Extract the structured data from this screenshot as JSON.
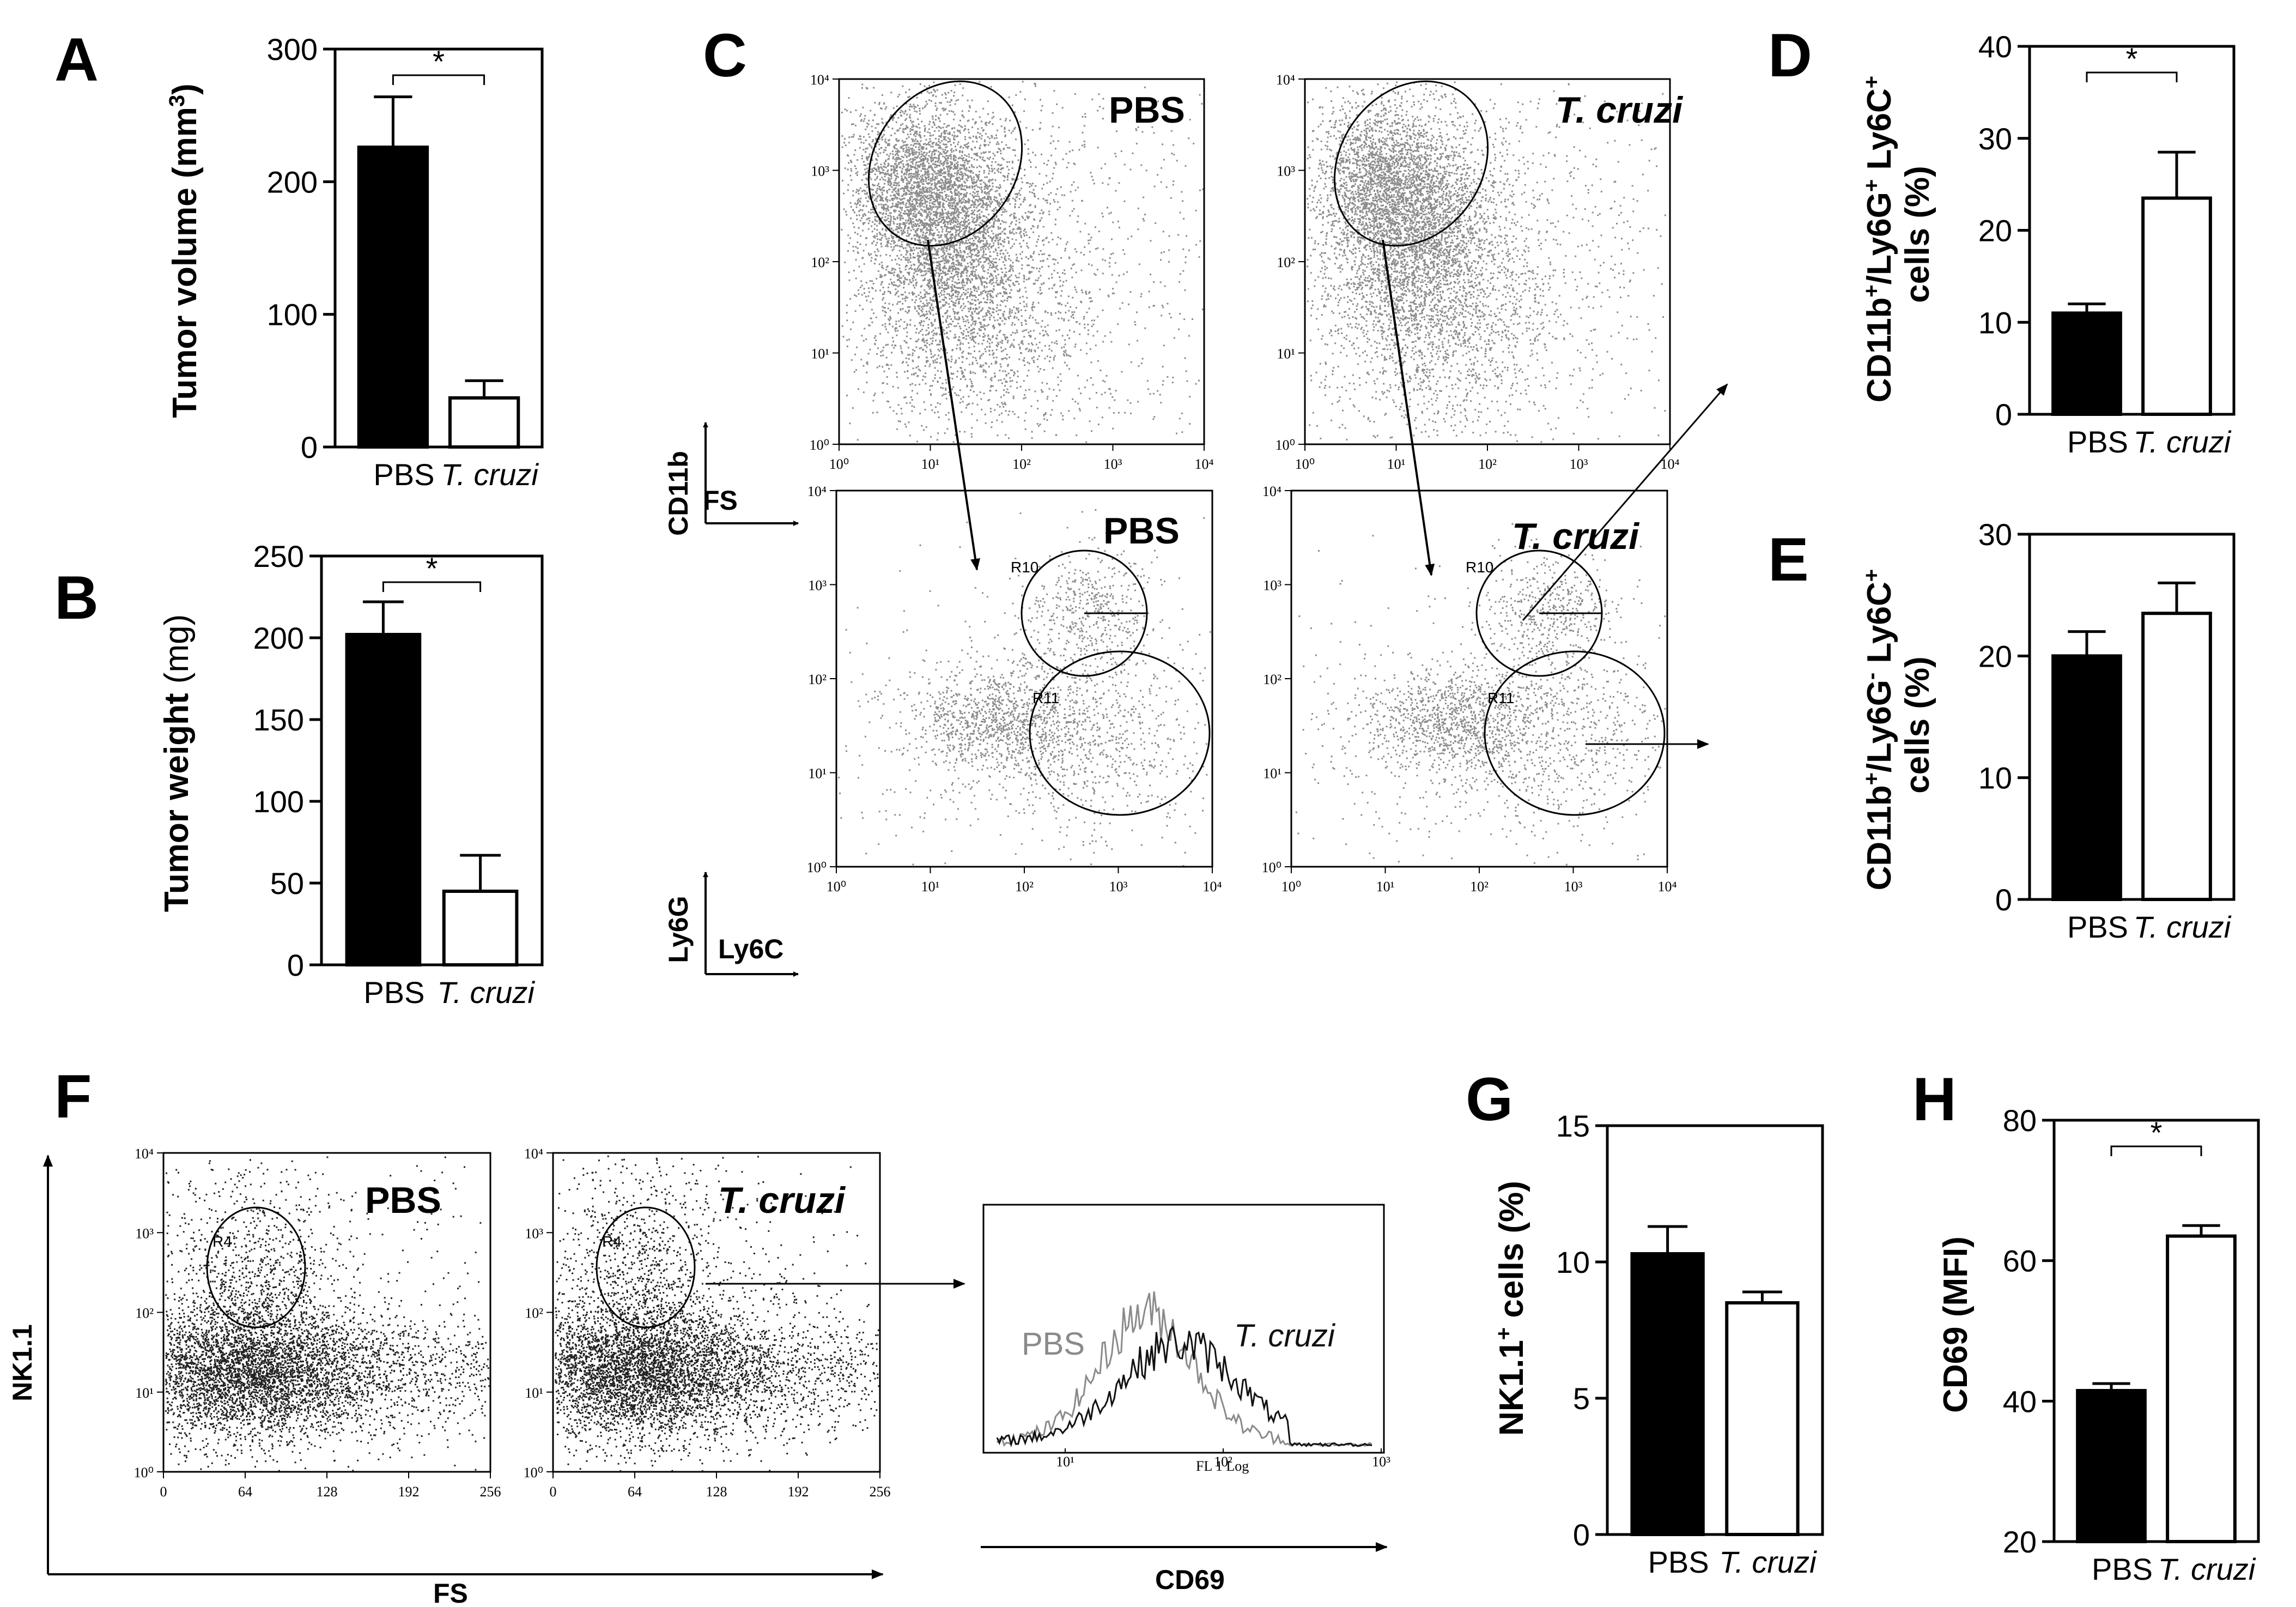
{
  "colors": {
    "black": "#000000",
    "dot": "#7a7a7a",
    "dark_dot": "#222222",
    "hist_pbs": "#8a8a8a",
    "hist_tc": "#111111"
  },
  "chart_data": [
    {
      "id": "A",
      "type": "bar",
      "letter": "A",
      "title": "",
      "ylabel": "Tumor volume (mm3)",
      "ylabel_parts": [
        "Tumor volume (mm",
        "3",
        ")"
      ],
      "categories": [
        "PBS",
        "T. cruzi"
      ],
      "values": [
        226,
        37
      ],
      "errors": [
        38,
        13
      ],
      "ylim": [
        0,
        300
      ],
      "yticks": [
        "0",
        "100",
        "200",
        "300"
      ],
      "significance": "*"
    },
    {
      "id": "B",
      "type": "bar",
      "letter": "B",
      "title": "",
      "ylabel": "Tumor weight (mg)",
      "ylabel_parts": [
        "Tumor weight",
        "(mg)"
      ],
      "categories": [
        "PBS",
        "T. cruzi"
      ],
      "values": [
        202,
        45
      ],
      "errors": [
        20,
        22
      ],
      "ylim": [
        0,
        250
      ],
      "yticks": [
        "0",
        "50",
        "100",
        "150",
        "200",
        "250"
      ],
      "significance": "*"
    },
    {
      "id": "D",
      "type": "bar",
      "letter": "D",
      "title": "",
      "ylabel": "CD11b+/Ly6G+ Ly6C+ cells (%)",
      "categories": [
        "PBS",
        "T. cruzi"
      ],
      "values": [
        11,
        23.5
      ],
      "errors": [
        1,
        5
      ],
      "ylim": [
        0,
        40
      ],
      "yticks": [
        "0",
        "10",
        "20",
        "30",
        "40"
      ],
      "significance": "*"
    },
    {
      "id": "E",
      "type": "bar",
      "letter": "E",
      "title": "",
      "ylabel": "CD11b+/Ly6G- Ly6C+ cells (%)",
      "categories": [
        "PBS",
        "T. cruzi"
      ],
      "values": [
        20,
        23.5
      ],
      "errors": [
        2,
        2.5
      ],
      "ylim": [
        0,
        30
      ],
      "yticks": [
        "0",
        "10",
        "20",
        "30"
      ],
      "significance": ""
    },
    {
      "id": "G",
      "type": "bar",
      "letter": "G",
      "title": "",
      "ylabel": "NK1.1+ cells (%)",
      "categories": [
        "PBS",
        "T. cruzi"
      ],
      "values": [
        10.3,
        8.5
      ],
      "errors": [
        1,
        0.4
      ],
      "ylim": [
        0,
        15
      ],
      "yticks": [
        "0",
        "5",
        "10",
        "15"
      ],
      "significance": ""
    },
    {
      "id": "H",
      "type": "bar",
      "letter": "H",
      "title": "",
      "ylabel": "CD69 (MFI)",
      "categories": [
        "PBS",
        "T. cruzi"
      ],
      "values": [
        41.5,
        63.5
      ],
      "errors": [
        1,
        1.5
      ],
      "ylim": [
        20,
        80
      ],
      "yticks": [
        "20",
        "40",
        "60",
        "80"
      ],
      "significance": "*"
    },
    {
      "id": "C",
      "type": "scatter",
      "letter": "C",
      "description_labels": true,
      "plots": [
        {
          "title": "PBS",
          "xticks": [
            "10⁰",
            "10¹",
            "10²",
            "10³",
            "10⁴"
          ],
          "yticks": [
            "10⁰",
            "10¹",
            "10²",
            "10³",
            "10⁴"
          ]
        },
        {
          "title": "T. cruzi",
          "xticks": [
            "10⁰",
            "10¹",
            "10²",
            "10³",
            "10⁴"
          ],
          "yticks": [
            "10⁰",
            "10¹",
            "10²",
            "10³",
            "10⁴"
          ]
        },
        {
          "title": "PBS",
          "gates": [
            "R10",
            "R11"
          ]
        },
        {
          "title": "T. cruzi",
          "gates": [
            "R10",
            "R11"
          ]
        }
      ],
      "axis_top": {
        "x": "FS",
        "y": "CD11b"
      },
      "axis_bottom": {
        "x": "Ly6C",
        "y": "Ly6G"
      }
    },
    {
      "id": "F",
      "type": "scatter",
      "letter": "F",
      "plots": [
        {
          "title": "PBS",
          "gate": "R4",
          "xticks": [
            "0",
            "64",
            "128",
            "192",
            "256"
          ],
          "yticks": [
            "10⁰",
            "10¹",
            "10²",
            "10³",
            "10⁴"
          ]
        },
        {
          "title": "T. cruzi",
          "gate": "R4",
          "xticks": [
            "0",
            "64",
            "128",
            "192",
            "256"
          ],
          "yticks": [
            "10⁰",
            "10¹",
            "10²",
            "10³",
            "10⁴"
          ]
        }
      ],
      "xlabel": "FS",
      "ylabel": "NK1.1"
    },
    {
      "id": "F-hist",
      "type": "line",
      "series": [
        {
          "name": "PBS"
        },
        {
          "name": "T. cruzi"
        }
      ],
      "xticks": [
        "10¹",
        "10²",
        "10³"
      ],
      "xlabel_small": "FL 1 Log",
      "xlabel": "CD69"
    }
  ]
}
